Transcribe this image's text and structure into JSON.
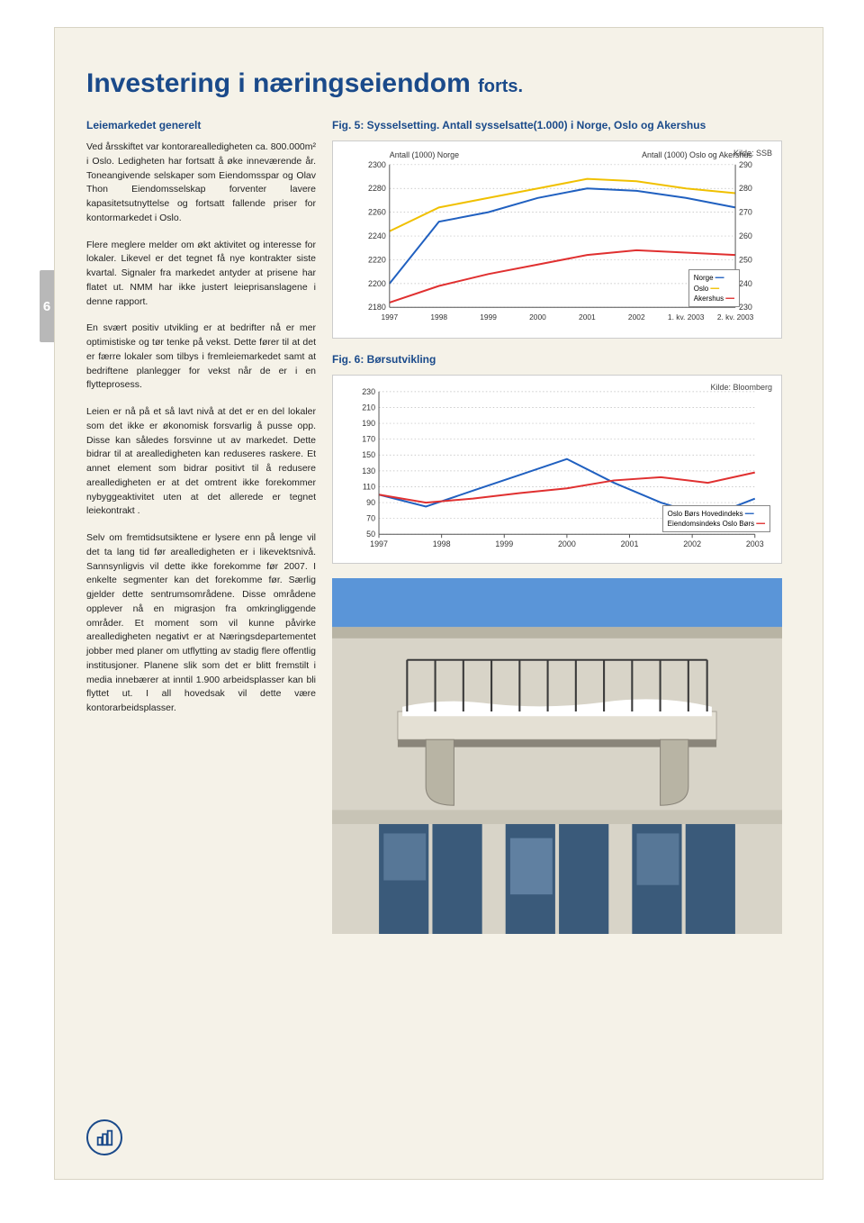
{
  "page_number": "6",
  "title_main": "Investering i næringseiendom",
  "title_suffix": "forts.",
  "left": {
    "heading": "Leiemarkedet generelt",
    "p1": "Ved årsskiftet var kontorarealledigheten ca. 800.000m² i Oslo. Ledigheten har fortsatt å øke inneværende år. Toneangivende selskaper som Eiendomsspar og Olav Thon Eiendomsselskap forventer lavere kapasitetsutnyttelse og fortsatt fallende priser for kontormarkedet i Oslo.",
    "p2": "Flere meglere melder om økt aktivitet og interesse for lokaler. Likevel er det tegnet få nye kontrakter siste kvartal. Signaler fra markedet antyder at prisene har flatet ut. NMM har ikke justert leieprisanslagene i denne rapport.",
    "p3": "En svært positiv utvikling er at bedrifter nå er mer optimistiske og tør tenke på vekst. Dette fører til at det er færre lokaler som tilbys i fremleiemarkedet samt at bedriftene planlegger for vekst når de er i en flytteprosess.",
    "p4": "Leien er nå på et så lavt nivå at det er en del lokaler som det ikke er økonomisk forsvarlig å pusse opp. Disse kan således forsvinne ut av markedet. Dette bidrar til at arealledigheten kan reduseres raskere. Et annet element som bidrar positivt til å redusere arealledigheten er at det omtrent ikke forekommer nybyggeaktivitet uten at det allerede er tegnet leiekontrakt .",
    "p5": "Selv om fremtidsutsiktene er lysere enn på lenge vil det ta lang tid før arealledigheten er i likevektsnivå. Sannsynligvis vil dette ikke forekomme før 2007. I enkelte segmenter kan det forekomme før. Særlig gjelder dette sentrumsområdene. Disse områdene opplever nå en migrasjon fra omkringliggende områder. Et moment som vil kunne påvirke arealledigheten negativt er at Næringsdepartementet jobber med planer om utflytting av stadig flere offentlig institusjoner. Planene slik som det er blitt fremstilt i media innebærer at inntil 1.900 arbeidsplasser kan bli flyttet ut. I all hovedsak vil dette være kontorarbeidsplasser."
  },
  "chart1": {
    "caption": "Fig. 5: Sysselsetting. Antall sysselsatte(1.000) i Norge, Oslo og Akershus",
    "source": "Kilde: SSB",
    "left_axis_title": "Antall (1000) Norge",
    "right_axis_title": "Antall (1000) Oslo og Akershus",
    "left_ticks": [
      2180,
      2200,
      2220,
      2240,
      2260,
      2280,
      2300
    ],
    "right_ticks": [
      230,
      240,
      250,
      260,
      270,
      280,
      290
    ],
    "x_labels": [
      "1997",
      "1998",
      "1999",
      "2000",
      "2001",
      "2002",
      "1. kv. 2003",
      "2. kv. 2003"
    ],
    "series": {
      "norge": {
        "color": "#2060c0",
        "values": [
          2200,
          2252,
          2260,
          2272,
          2280,
          2278,
          2272,
          2264
        ]
      },
      "oslo": {
        "color": "#f0c000",
        "values": [
          262,
          272,
          276,
          280,
          284,
          283,
          280,
          278
        ]
      },
      "akershus": {
        "color": "#e03030",
        "values": [
          232,
          239,
          244,
          248,
          252,
          254,
          253,
          252
        ]
      }
    },
    "legend": [
      "Norge",
      "Oslo",
      "Akershus"
    ]
  },
  "chart2": {
    "caption": "Fig. 6: Børsutvikling",
    "source": "Kilde: Bloomberg",
    "y_ticks": [
      50,
      70,
      90,
      110,
      130,
      150,
      170,
      190,
      210,
      230
    ],
    "x_labels": [
      "1997",
      "1998",
      "1999",
      "2000",
      "2001",
      "2002",
      "2003"
    ],
    "series": {
      "hovedindeks": {
        "color": "#2060c0",
        "values": [
          100,
          85,
          105,
          125,
          145,
          115,
          90,
          72,
          95
        ]
      },
      "eiendom": {
        "color": "#e03030",
        "values": [
          100,
          90,
          95,
          102,
          108,
          118,
          122,
          115,
          128
        ]
      }
    },
    "legend": [
      "Oslo Børs Hovedindeks",
      "Eiendomsindeks Oslo Børs"
    ]
  },
  "colors": {
    "heading": "#1a4a8a",
    "page_bg": "#f5f2e8",
    "grid": "#cccccc"
  }
}
